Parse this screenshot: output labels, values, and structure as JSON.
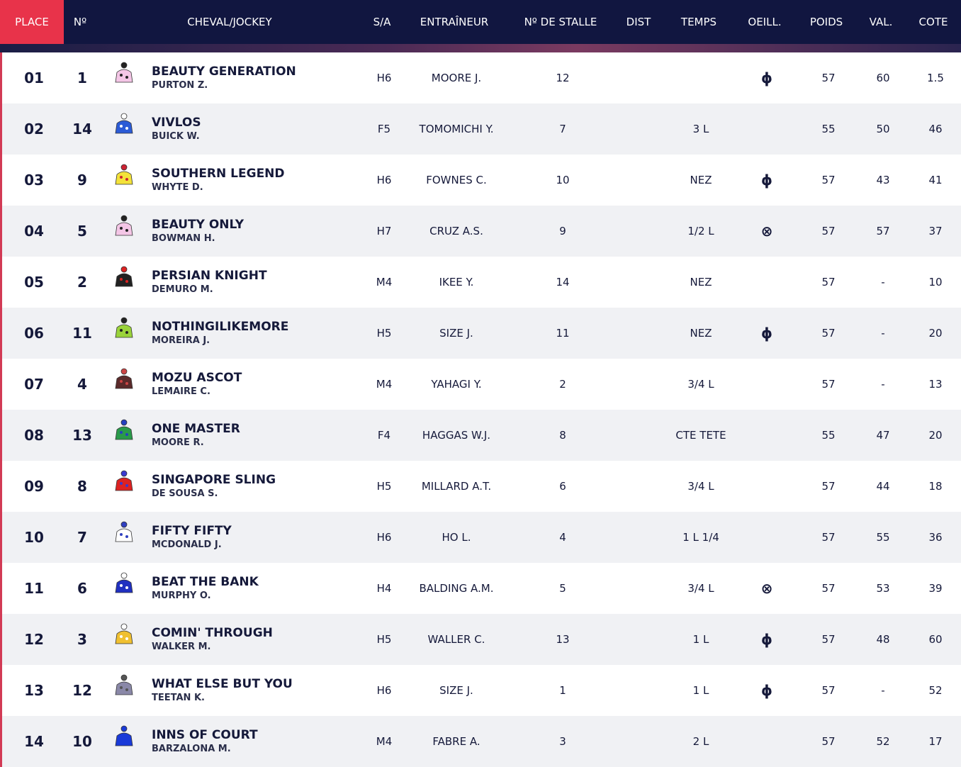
{
  "header": {
    "columns": [
      "PLACE",
      "Nº",
      "CHEVAL/JOCKEY",
      "S/A",
      "ENTRAÎNEUR",
      "Nº DE STALLE",
      "DIST",
      "TEMPS",
      "OEILL.",
      "POIDS",
      "VAL.",
      "COTE"
    ]
  },
  "rows": [
    {
      "place": "01",
      "no": "1",
      "horse": "BEAUTY GENERATION",
      "jockey": "PURTON Z.",
      "sa": "H6",
      "trainer": "MOORE J.",
      "stall": "12",
      "oeill": "ɸ",
      "poids": "57",
      "val": "60",
      "cote": "1.5"
    },
    {
      "place": "02",
      "no": "14",
      "horse": "VIVLOS",
      "jockey": "BUICK W.",
      "sa": "F5",
      "trainer": "TOMOMICHI Y.",
      "stall": "7",
      "temps": "3 L",
      "poids": "55",
      "val": "50",
      "cote": "46"
    },
    {
      "place": "03",
      "no": "9",
      "horse": "SOUTHERN LEGEND",
      "jockey": "WHYTE D.",
      "sa": "H6",
      "trainer": "FOWNES C.",
      "stall": "10",
      "temps": "NEZ",
      "oeill": "ɸ",
      "poids": "57",
      "val": "43",
      "cote": "41"
    },
    {
      "place": "04",
      "no": "5",
      "horse": "BEAUTY ONLY",
      "jockey": "BOWMAN H.",
      "sa": "H7",
      "trainer": "CRUZ A.S.",
      "stall": "9",
      "temps": "1/2 L",
      "oeill": "⊗",
      "poids": "57",
      "val": "57",
      "cote": "37"
    },
    {
      "place": "05",
      "no": "2",
      "horse": "PERSIAN KNIGHT",
      "jockey": "DEMURO M.",
      "sa": "M4",
      "trainer": "IKEE Y.",
      "stall": "14",
      "temps": "NEZ",
      "poids": "57",
      "val": "-",
      "cote": "10"
    },
    {
      "place": "06",
      "no": "11",
      "horse": "NOTHINGILIKEMORE",
      "jockey": "MOREIRA J.",
      "sa": "H5",
      "trainer": "SIZE J.",
      "stall": "11",
      "temps": "NEZ",
      "oeill": "ɸ",
      "poids": "57",
      "val": "-",
      "cote": "20"
    },
    {
      "place": "07",
      "no": "4",
      "horse": "MOZU ASCOT",
      "jockey": "LEMAIRE C.",
      "sa": "M4",
      "trainer": "YAHAGI Y.",
      "stall": "2",
      "temps": "3/4 L",
      "poids": "57",
      "val": "-",
      "cote": "13"
    },
    {
      "place": "08",
      "no": "13",
      "horse": "ONE MASTER",
      "jockey": "MOORE R.",
      "sa": "F4",
      "trainer": "HAGGAS W.J.",
      "stall": "8",
      "temps": "CTE TETE",
      "poids": "55",
      "val": "47",
      "cote": "20"
    },
    {
      "place": "09",
      "no": "8",
      "horse": "SINGAPORE SLING",
      "jockey": "DE SOUSA S.",
      "sa": "H5",
      "trainer": "MILLARD A.T.",
      "stall": "6",
      "temps": "3/4 L",
      "poids": "57",
      "val": "44",
      "cote": "18"
    },
    {
      "place": "10",
      "no": "7",
      "horse": "FIFTY FIFTY",
      "jockey": "MCDONALD J.",
      "sa": "H6",
      "trainer": "HO L.",
      "stall": "4",
      "temps": "1 L 1/4",
      "poids": "57",
      "val": "55",
      "cote": "36"
    },
    {
      "place": "11",
      "no": "6",
      "horse": "BEAT THE BANK",
      "jockey": "MURPHY O.",
      "sa": "H4",
      "trainer": "BALDING A.M.",
      "stall": "5",
      "temps": "3/4 L",
      "oeill": "⊗",
      "poids": "57",
      "val": "53",
      "cote": "39"
    },
    {
      "place": "12",
      "no": "3",
      "horse": "COMIN' THROUGH",
      "jockey": "WALKER M.",
      "sa": "H5",
      "trainer": "WALLER C.",
      "stall": "13",
      "temps": "1 L",
      "oeill": "ɸ",
      "poids": "57",
      "val": "48",
      "cote": "60"
    },
    {
      "place": "13",
      "no": "12",
      "horse": "WHAT ELSE BUT YOU",
      "jockey": "TEETAN K.",
      "sa": "H6",
      "trainer": "SIZE J.",
      "stall": "1",
      "temps": "1 L",
      "oeill": "ɸ",
      "poids": "57",
      "val": "-",
      "cote": "52"
    },
    {
      "place": "14",
      "no": "10",
      "horse": "INNS OF COURT",
      "jockey": "BARZALONA M.",
      "sa": "M4",
      "trainer": "FABRE A.",
      "stall": "3",
      "temps": "2 L",
      "poids": "57",
      "val": "52",
      "cote": "17"
    }
  ]
}
